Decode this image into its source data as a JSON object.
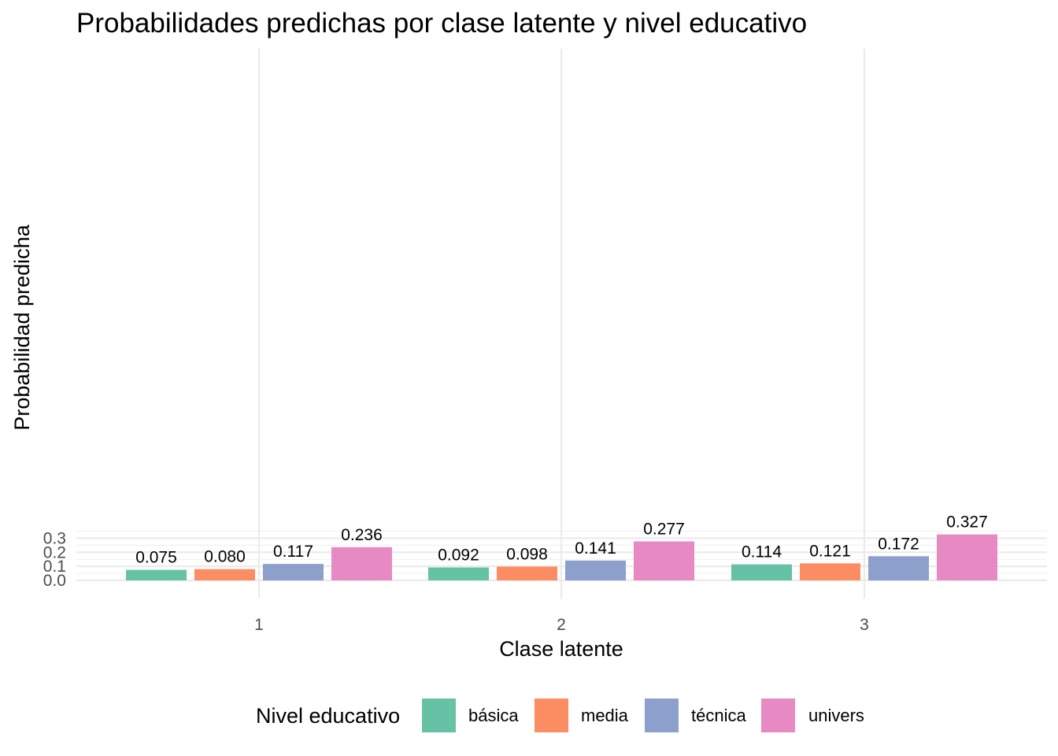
{
  "chart_data": {
    "type": "bar",
    "title": "Probabilidades predichas por clase latente y nivel educativo",
    "xlabel": "Clase latente",
    "ylabel": "Probabilidad predicha",
    "categories": [
      "1",
      "2",
      "3"
    ],
    "series": [
      {
        "name": "básica",
        "color": "#66c2a5",
        "values": [
          0.075,
          0.092,
          0.114
        ],
        "labels": [
          "0.075",
          "0.092",
          "0.114"
        ]
      },
      {
        "name": "media",
        "color": "#fc8d62",
        "values": [
          0.08,
          0.098,
          0.121
        ],
        "labels": [
          "0.080",
          "0.098",
          "0.121"
        ]
      },
      {
        "name": "técnica",
        "color": "#8da0cb",
        "values": [
          0.117,
          0.141,
          0.172
        ],
        "labels": [
          "0.117",
          "0.141",
          "0.172"
        ]
      },
      {
        "name": "univers",
        "color": "#e78ac3",
        "values": [
          0.236,
          0.277,
          0.327
        ],
        "labels": [
          "0.236",
          "0.277",
          "0.327"
        ]
      }
    ],
    "ylim": [
      0,
      0.35
    ],
    "yticks": [
      0.0,
      0.1,
      0.2,
      0.3
    ],
    "ytick_labels": [
      "0.0",
      "0.1",
      "0.2",
      "0.3"
    ],
    "grid": true,
    "legend": {
      "title": "Nivel educativo",
      "position": "bottom"
    }
  }
}
